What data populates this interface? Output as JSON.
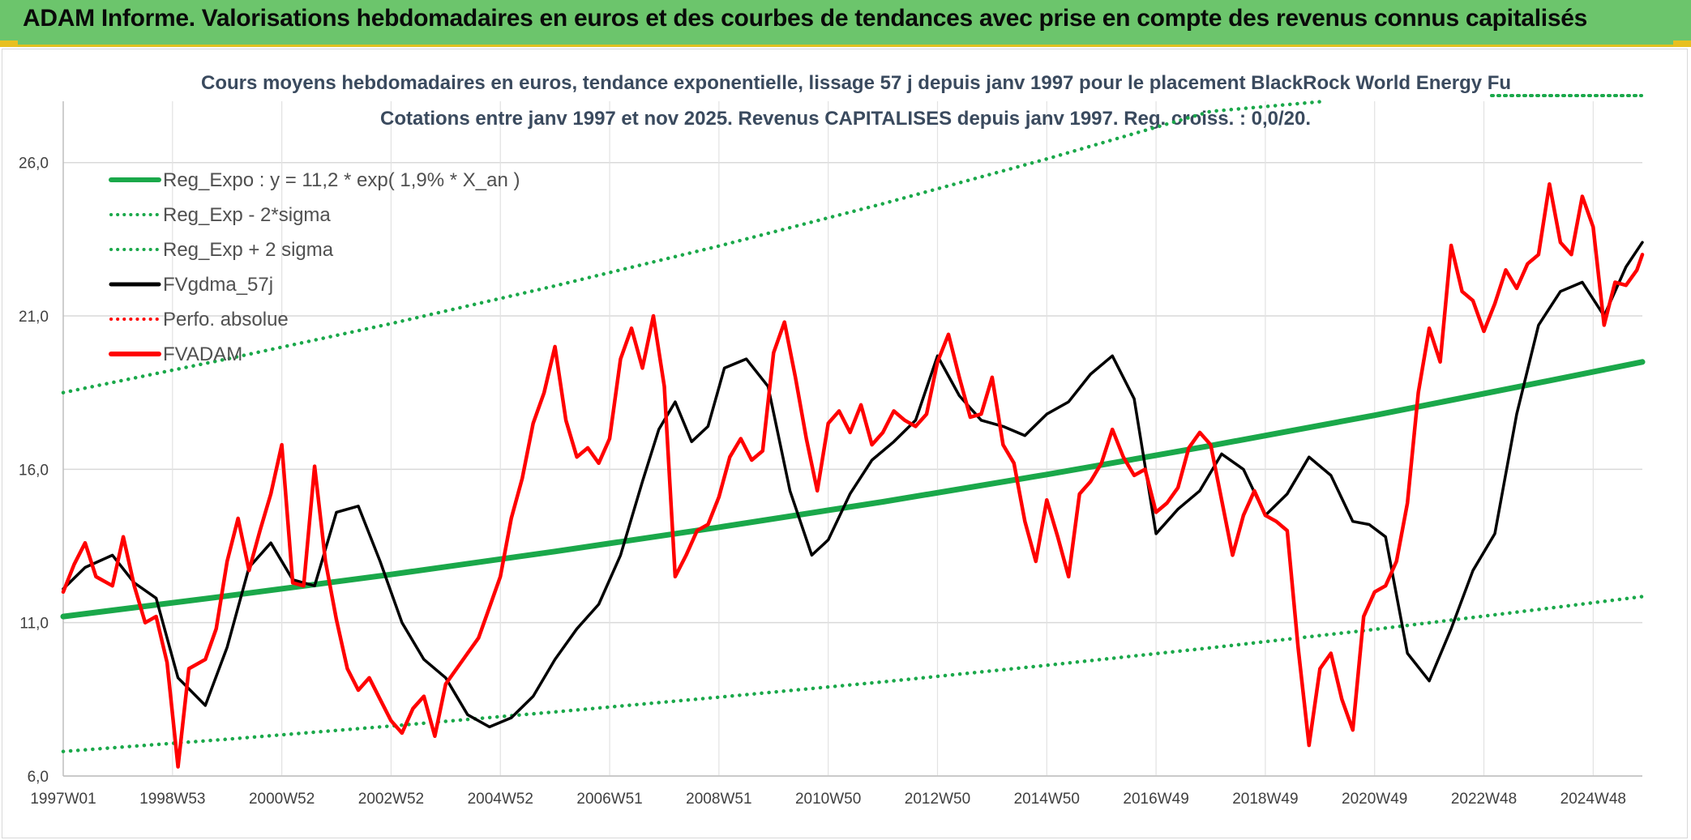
{
  "banner": {
    "title": "ADAM Informe. Valorisations hebdomadaires en euros et des courbes de tendances avec prise en compte des revenus connus capitalisés"
  },
  "colors": {
    "banner_bg": "#6cc56c",
    "trend": "#1aa84a",
    "band": "#1aa84a",
    "smooth": "#000000",
    "price": "#ff0000",
    "perfo": "#ff0000"
  },
  "chart_data": {
    "type": "line",
    "title_line1": "Cours moyens hebdomadaires en euros, tendance exponentielle, lissage 57 j depuis janv 1997 pour le placement BlackRock World Energy Fu",
    "title_line2": "Cotations entre janv 1997 et nov 2025. Revenus CAPITALISES depuis janv 1997. Reg. croiss. : 0,0/20.",
    "x_range": [
      1997.0,
      2025.9
    ],
    "ylim": [
      6.0,
      28.0
    ],
    "yticks": [
      6.0,
      11.0,
      16.0,
      21.0,
      26.0
    ],
    "ytick_labels": [
      "6,0",
      "11,0",
      "16,0",
      "21,0",
      "26,0"
    ],
    "xticks": [
      {
        "x": 1997.0,
        "label": "1997W01"
      },
      {
        "x": 1999.0,
        "label": "1998W53"
      },
      {
        "x": 2001.0,
        "label": "2000W52"
      },
      {
        "x": 2003.0,
        "label": "2002W52"
      },
      {
        "x": 2005.0,
        "label": "2004W52"
      },
      {
        "x": 2007.0,
        "label": "2006W51"
      },
      {
        "x": 2009.0,
        "label": "2008W51"
      },
      {
        "x": 2011.0,
        "label": "2010W50"
      },
      {
        "x": 2013.0,
        "label": "2012W50"
      },
      {
        "x": 2015.0,
        "label": "2014W50"
      },
      {
        "x": 2017.0,
        "label": "2016W49"
      },
      {
        "x": 2019.0,
        "label": "2018W49"
      },
      {
        "x": 2021.0,
        "label": "2020W49"
      },
      {
        "x": 2023.0,
        "label": "2022W48"
      },
      {
        "x": 2025.0,
        "label": "2024W48"
      }
    ],
    "grid": true,
    "legend_position": "top-left",
    "series": [
      {
        "name": "Reg_Expo : y = 11,2 * exp( 1,9% *  X_an )",
        "style": "solid-thick",
        "color": "#1aa84a",
        "x": [
          1997.0,
          2000.0,
          2003.0,
          2006.0,
          2009.0,
          2012.0,
          2015.0,
          2018.0,
          2021.0,
          2024.0,
          2025.9
        ],
        "y": [
          11.2,
          11.87,
          12.57,
          13.32,
          14.11,
          14.94,
          15.83,
          16.77,
          17.76,
          18.82,
          19.5
        ]
      },
      {
        "name": "Reg_Exp - 2*sigma",
        "style": "dotted",
        "color": "#1aa84a",
        "x": [
          1997.0,
          2000.0,
          2003.0,
          2006.0,
          2009.0,
          2012.0,
          2015.0,
          2018.0,
          2021.0,
          2024.0,
          2025.9
        ],
        "y": [
          6.8,
          7.2,
          7.63,
          8.09,
          8.57,
          9.07,
          9.61,
          10.18,
          10.78,
          11.43,
          11.85
        ]
      },
      {
        "name": "Reg_Exp + 2 sigma",
        "style": "dotted",
        "color": "#1aa84a",
        "x": [
          1997.0,
          2000.0,
          2003.0,
          2006.0,
          2009.0,
          2012.0,
          2015.0,
          2018.0,
          2020.1
        ],
        "y": [
          18.5,
          19.6,
          20.75,
          21.98,
          23.28,
          24.66,
          26.12,
          27.67,
          28.0
        ]
      },
      {
        "name": "FVgdma_57j",
        "style": "solid",
        "color": "#000000",
        "x": [
          1997.0,
          1997.4,
          1997.9,
          1998.3,
          1998.7,
          1999.1,
          1999.6,
          2000.0,
          2000.4,
          2000.8,
          2001.2,
          2001.6,
          2002.0,
          2002.4,
          2002.8,
          2003.2,
          2003.6,
          2004.0,
          2004.4,
          2004.8,
          2005.2,
          2005.6,
          2006.0,
          2006.4,
          2006.8,
          2007.2,
          2007.6,
          2007.9,
          2008.2,
          2008.5,
          2008.8,
          2009.1,
          2009.5,
          2009.9,
          2010.3,
          2010.7,
          2011.0,
          2011.4,
          2011.8,
          2012.2,
          2012.6,
          2013.0,
          2013.4,
          2013.8,
          2014.2,
          2014.6,
          2015.0,
          2015.4,
          2015.8,
          2016.2,
          2016.6,
          2017.0,
          2017.4,
          2017.8,
          2018.2,
          2018.6,
          2019.0,
          2019.4,
          2019.8,
          2020.2,
          2020.6,
          2020.9,
          2021.2,
          2021.6,
          2022.0,
          2022.4,
          2022.8,
          2023.2,
          2023.6,
          2024.0,
          2024.4,
          2024.8,
          2025.2,
          2025.6,
          2025.9
        ],
        "y": [
          12.1,
          12.8,
          13.2,
          12.3,
          11.8,
          9.2,
          8.3,
          10.2,
          12.8,
          13.6,
          12.4,
          12.2,
          14.6,
          14.8,
          13.0,
          11.0,
          9.8,
          9.2,
          8.0,
          7.6,
          7.9,
          8.6,
          9.8,
          10.8,
          11.6,
          13.2,
          15.6,
          17.3,
          18.2,
          16.9,
          17.4,
          19.3,
          19.6,
          18.7,
          15.3,
          13.2,
          13.7,
          15.2,
          16.3,
          16.9,
          17.6,
          19.7,
          18.4,
          17.6,
          17.4,
          17.1,
          17.8,
          18.2,
          19.1,
          19.7,
          18.3,
          13.9,
          14.7,
          15.3,
          16.5,
          16.0,
          14.5,
          15.2,
          16.4,
          15.8,
          14.3,
          14.2,
          13.8,
          10.0,
          9.1,
          10.8,
          12.7,
          13.9,
          17.8,
          20.7,
          21.8,
          22.1,
          21.0,
          22.6,
          23.4
        ]
      },
      {
        "name": "Perfo. absolue",
        "style": "dotted",
        "color": "#ff0000",
        "x": [],
        "y": []
      },
      {
        "name": "FVADAM",
        "style": "solid-thick",
        "color": "#ff0000",
        "x": [
          1997.0,
          1997.2,
          1997.4,
          1997.6,
          1997.9,
          1998.1,
          1998.3,
          1998.5,
          1998.7,
          1998.9,
          1999.1,
          1999.3,
          1999.6,
          1999.8,
          2000.0,
          2000.2,
          2000.4,
          2000.6,
          2000.8,
          2001.0,
          2001.2,
          2001.4,
          2001.6,
          2001.8,
          2002.0,
          2002.2,
          2002.4,
          2002.6,
          2002.8,
          2003.0,
          2003.2,
          2003.4,
          2003.6,
          2003.8,
          2004.0,
          2004.2,
          2004.4,
          2004.6,
          2004.8,
          2005.0,
          2005.2,
          2005.4,
          2005.6,
          2005.8,
          2006.0,
          2006.2,
          2006.4,
          2006.6,
          2006.8,
          2007.0,
          2007.2,
          2007.4,
          2007.6,
          2007.8,
          2008.0,
          2008.2,
          2008.4,
          2008.6,
          2008.8,
          2009.0,
          2009.2,
          2009.4,
          2009.6,
          2009.8,
          2010.0,
          2010.2,
          2010.4,
          2010.6,
          2010.8,
          2011.0,
          2011.2,
          2011.4,
          2011.6,
          2011.8,
          2012.0,
          2012.2,
          2012.4,
          2012.6,
          2012.8,
          2013.0,
          2013.2,
          2013.4,
          2013.6,
          2013.8,
          2014.0,
          2014.2,
          2014.4,
          2014.6,
          2014.8,
          2015.0,
          2015.2,
          2015.4,
          2015.6,
          2015.8,
          2016.0,
          2016.2,
          2016.4,
          2016.6,
          2016.8,
          2017.0,
          2017.2,
          2017.4,
          2017.6,
          2017.8,
          2018.0,
          2018.2,
          2018.4,
          2018.6,
          2018.8,
          2019.0,
          2019.2,
          2019.4,
          2019.6,
          2019.8,
          2020.0,
          2020.2,
          2020.4,
          2020.6,
          2020.8,
          2021.0,
          2021.2,
          2021.4,
          2021.6,
          2021.8,
          2022.0,
          2022.2,
          2022.4,
          2022.6,
          2022.8,
          2023.0,
          2023.2,
          2023.4,
          2023.6,
          2023.8,
          2024.0,
          2024.2,
          2024.4,
          2024.6,
          2024.8,
          2025.0,
          2025.2,
          2025.4,
          2025.6,
          2025.8,
          2025.9
        ],
        "y": [
          12.0,
          12.9,
          13.6,
          12.5,
          12.2,
          13.8,
          12.2,
          11.0,
          11.2,
          9.7,
          6.3,
          9.5,
          9.8,
          10.8,
          13.0,
          14.4,
          12.7,
          14.0,
          15.2,
          16.8,
          12.3,
          12.2,
          16.1,
          13.0,
          11.1,
          9.5,
          8.8,
          9.2,
          8.5,
          7.8,
          7.4,
          8.2,
          8.6,
          7.3,
          9.0,
          9.5,
          10.0,
          10.5,
          11.5,
          12.5,
          14.4,
          15.7,
          17.5,
          18.5,
          20.0,
          17.6,
          16.4,
          16.7,
          16.2,
          17.0,
          19.6,
          20.6,
          19.3,
          21.0,
          18.7,
          12.5,
          13.2,
          14.0,
          14.2,
          15.1,
          16.4,
          17.0,
          16.3,
          16.6,
          19.8,
          20.8,
          19.0,
          17.0,
          15.3,
          17.5,
          17.9,
          17.2,
          18.1,
          16.8,
          17.2,
          17.9,
          17.6,
          17.4,
          17.8,
          19.5,
          20.4,
          19.0,
          17.7,
          17.8,
          19.0,
          16.8,
          16.2,
          14.3,
          13.0,
          15.0,
          13.8,
          12.5,
          15.2,
          15.6,
          16.2,
          17.3,
          16.4,
          15.8,
          16.0,
          14.6,
          14.9,
          15.4,
          16.7,
          17.2,
          16.8,
          15.0,
          13.2,
          14.5,
          15.3,
          14.5,
          14.3,
          14.0,
          10.2,
          7.0,
          9.5,
          10.0,
          8.5,
          7.5,
          11.2,
          12.0,
          12.2,
          13.0,
          14.9,
          18.5,
          20.6,
          19.5,
          23.3,
          21.8,
          21.5,
          20.5,
          21.4,
          22.5,
          21.9,
          22.7,
          23.0,
          25.3,
          23.4,
          23.0,
          24.9,
          23.9,
          20.7,
          22.1,
          22.0,
          22.5,
          23.0
        ]
      }
    ]
  }
}
